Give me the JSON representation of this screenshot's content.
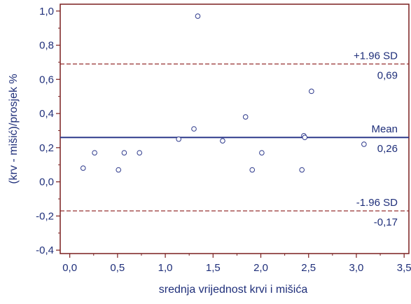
{
  "chart_data": {
    "type": "scatter",
    "title": "",
    "xlabel": "srednja vrijednost krvi i mišića",
    "ylabel": "(krv - mišić)/prosjek %",
    "xlim": [
      -0.1,
      3.55
    ],
    "ylim": [
      -0.42,
      1.04
    ],
    "x_ticks": [
      0.0,
      0.5,
      1.0,
      1.5,
      2.0,
      2.5,
      3.0,
      3.5
    ],
    "x_tick_labels": [
      "0,0",
      "0,5",
      "1,0",
      "1,5",
      "2,0",
      "2,5",
      "3,0",
      "3,5"
    ],
    "y_ticks": [
      -0.4,
      -0.2,
      0.0,
      0.2,
      0.4,
      0.6,
      0.8,
      1.0
    ],
    "y_tick_labels": [
      "-0,4",
      "-0,2",
      "0,0",
      "0,2",
      "0,4",
      "0,6",
      "0,8",
      "1,0"
    ],
    "points": [
      {
        "x": 0.14,
        "y": 0.08
      },
      {
        "x": 0.26,
        "y": 0.17
      },
      {
        "x": 0.51,
        "y": 0.07
      },
      {
        "x": 0.57,
        "y": 0.17
      },
      {
        "x": 0.73,
        "y": 0.17
      },
      {
        "x": 1.14,
        "y": 0.25
      },
      {
        "x": 1.3,
        "y": 0.31
      },
      {
        "x": 1.34,
        "y": 0.97
      },
      {
        "x": 1.6,
        "y": 0.24
      },
      {
        "x": 1.84,
        "y": 0.38
      },
      {
        "x": 1.91,
        "y": 0.07
      },
      {
        "x": 2.01,
        "y": 0.17
      },
      {
        "x": 2.43,
        "y": 0.07
      },
      {
        "x": 2.45,
        "y": 0.27
      },
      {
        "x": 2.46,
        "y": 0.26
      },
      {
        "x": 2.53,
        "y": 0.53
      },
      {
        "x": 3.08,
        "y": 0.22
      }
    ],
    "reference_lines": [
      {
        "name": "+1.96 SD",
        "value": 0.69,
        "value_label": "0,69",
        "style": "dashed",
        "color": "#8b1a1a"
      },
      {
        "name": "Mean",
        "value": 0.26,
        "value_label": "0,26",
        "style": "solid",
        "color": "#2e3a8c"
      },
      {
        "name": "-1.96 SD",
        "value": -0.17,
        "value_label": "-0,17",
        "style": "dashed",
        "color": "#8b1a1a"
      }
    ],
    "grid": false,
    "colors": {
      "axis": "#7a1f1f",
      "text": "#1f2f7a",
      "points": "#2e3a8c"
    }
  }
}
